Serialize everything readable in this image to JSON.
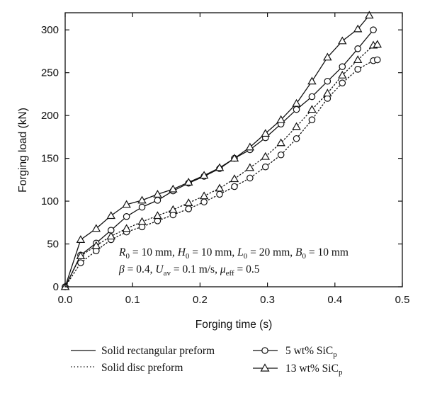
{
  "chart_data": {
    "type": "line",
    "xlabel": "Forging time (s)",
    "ylabel": "Forging load (kN)",
    "xlim": [
      0.0,
      0.5
    ],
    "ylim": [
      0,
      320
    ],
    "xticks": [
      "0.0",
      "0.1",
      "0.2",
      "0.3",
      "0.4",
      "0.5"
    ],
    "yticks": [
      "0",
      "50",
      "100",
      "150",
      "200",
      "250",
      "300"
    ],
    "xtick_values": [
      0.0,
      0.1,
      0.2,
      0.3,
      0.4,
      0.5
    ],
    "ytick_values": [
      0,
      50,
      100,
      150,
      200,
      250,
      300
    ],
    "grid": false,
    "annotation": {
      "line1": {
        "R": "R",
        "R_sub": "0",
        "R_val": " = 10 mm, ",
        "H": "H",
        "H_sub": "0",
        "H_val": " = 10 mm, ",
        "L": "L",
        "L_sub": "0",
        "L_val": " = 20 mm, ",
        "B": "B",
        "B_sub": "0",
        "B_val": " = 10 mm"
      },
      "line2": {
        "beta": "β",
        "beta_val": " = 0.4, ",
        "U": "U",
        "U_sub": "av",
        "U_val": " = 0.1 m/s, ",
        "mu": "μ",
        "mu_sub": "eff",
        "mu_val": " = 0.5"
      }
    },
    "legend": {
      "placement": "bottom",
      "solid_label": "Solid rectangular preform",
      "dotted_label": "Solid disc preform",
      "circle_label": "5 wt% SiC",
      "circle_sub": "p",
      "triangle_label": "13 wt% SiC",
      "triangle_sub": "p"
    },
    "series": [
      {
        "marker": "circle",
        "line": "solid",
        "x": [
          0.0,
          0.023,
          0.046,
          0.068,
          0.091,
          0.114,
          0.137,
          0.16,
          0.183,
          0.206,
          0.229,
          0.251,
          0.274,
          0.297,
          0.32,
          0.343,
          0.366,
          0.389,
          0.411,
          0.434,
          0.457
        ],
        "y": [
          0,
          37,
          51,
          66,
          82,
          93,
          101,
          112,
          121,
          129,
          138,
          150,
          160,
          174,
          190,
          207,
          222,
          240,
          257,
          278,
          300
        ]
      },
      {
        "marker": "triangle",
        "line": "solid",
        "x": [
          0.0,
          0.023,
          0.046,
          0.068,
          0.091,
          0.114,
          0.137,
          0.16,
          0.183,
          0.206,
          0.229,
          0.251,
          0.274,
          0.297,
          0.32,
          0.343,
          0.366,
          0.389,
          0.411,
          0.434,
          0.451
        ],
        "y": [
          0,
          55,
          68,
          83,
          96,
          101,
          108,
          114,
          122,
          130,
          139,
          150,
          163,
          179,
          195,
          214,
          240,
          268,
          287,
          301,
          317
        ]
      },
      {
        "marker": "circle",
        "line": "dotted",
        "x": [
          0.0,
          0.023,
          0.046,
          0.068,
          0.091,
          0.114,
          0.137,
          0.16,
          0.183,
          0.206,
          0.229,
          0.251,
          0.274,
          0.297,
          0.32,
          0.343,
          0.366,
          0.389,
          0.411,
          0.434,
          0.457,
          0.463
        ],
        "y": [
          0,
          28,
          42,
          55,
          64,
          70,
          77,
          84,
          91,
          99,
          108,
          117,
          127,
          140,
          154,
          173,
          195,
          220,
          238,
          254,
          264,
          265
        ]
      },
      {
        "marker": "triangle",
        "line": "dotted",
        "x": [
          0.0,
          0.023,
          0.046,
          0.068,
          0.091,
          0.114,
          0.137,
          0.16,
          0.183,
          0.206,
          0.229,
          0.251,
          0.274,
          0.297,
          0.32,
          0.343,
          0.366,
          0.389,
          0.411,
          0.434,
          0.457,
          0.463
        ],
        "y": [
          0,
          36,
          48,
          59,
          68,
          76,
          83,
          90,
          98,
          106,
          115,
          126,
          139,
          152,
          168,
          187,
          207,
          226,
          247,
          265,
          282,
          283
        ]
      }
    ]
  }
}
